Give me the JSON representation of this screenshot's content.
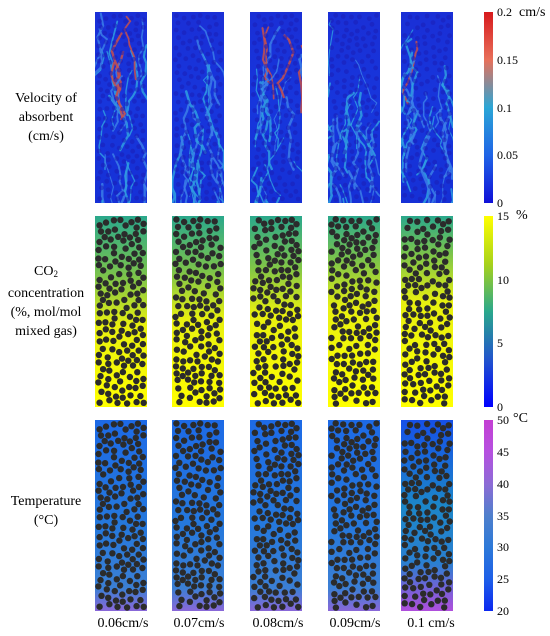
{
  "rows": [
    {
      "label_lines": [
        "Velocity of",
        "absorbent",
        "(cm/s)"
      ]
    },
    {
      "label_main": "CO",
      "label_sub": "2",
      "label_lines": [
        "concentration",
        "(%, mol/mol",
        "mixed gas)"
      ]
    },
    {
      "label_lines": [
        "Temperature",
        "(°C)"
      ]
    }
  ],
  "columns": [
    "0.06cm/s",
    "0.07cm/s",
    "0.08cm/s",
    "0.09cm/s",
    "0.1 cm/s"
  ],
  "colorbars": [
    {
      "unit": "cm/s",
      "ticks": [
        "0.2",
        "0.15",
        "0.1",
        "0.05",
        "0"
      ],
      "colors": [
        "#d7191c",
        "#e8705a",
        "#2ba6d6",
        "#1f64e6",
        "#1010d8"
      ]
    },
    {
      "unit": "%",
      "ticks": [
        "15",
        "10",
        "5",
        "0"
      ],
      "colors": [
        "#ffff00",
        "#a8d21a",
        "#2aa88c",
        "#2255cc",
        "#0000ff"
      ]
    },
    {
      "unit": "°C",
      "ticks": [
        "50",
        "45",
        "40",
        "35",
        "30",
        "25",
        "20"
      ],
      "colors": [
        "#c43fd3",
        "#b650e0",
        "#8d6bd6",
        "#4f7fcc",
        "#2d79d8",
        "#1d5fe8",
        "#0c28f0"
      ]
    }
  ]
}
